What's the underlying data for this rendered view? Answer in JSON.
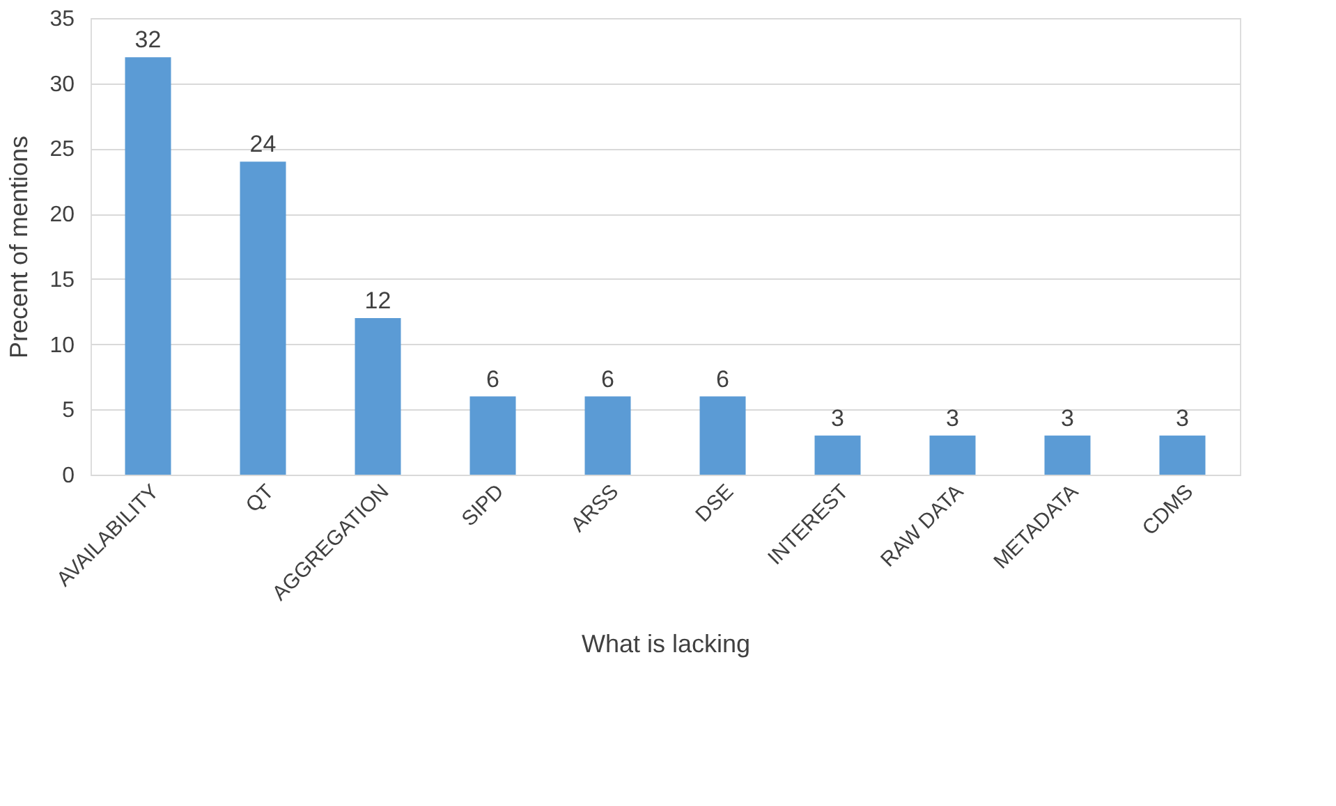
{
  "chart_data": {
    "type": "bar",
    "xlabel": "What is lacking",
    "ylabel": "Precent of mentions",
    "categories": [
      "AVAILABILITY",
      "QT",
      "AGGREGATION",
      "SIPD",
      "ARSS",
      "DSE",
      "INTEREST",
      "RAW DATA",
      "METADATA",
      "CDMS"
    ],
    "values": [
      32,
      24,
      12,
      6,
      6,
      6,
      3,
      3,
      3,
      3
    ],
    "color": "#5b9bd5",
    "ylim": [
      0,
      35
    ],
    "yticks": [
      0,
      5,
      10,
      15,
      20,
      25,
      30,
      35
    ],
    "grid": "y",
    "data_labels": true
  }
}
